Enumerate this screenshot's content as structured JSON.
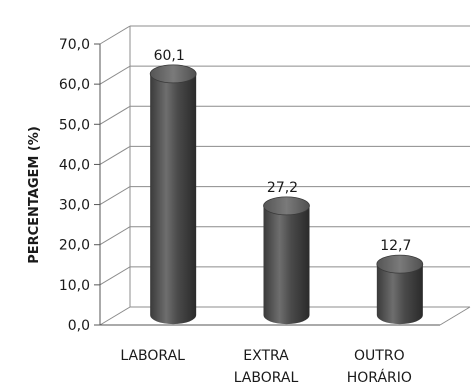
{
  "chart_data": {
    "type": "bar",
    "style": "3d-cylinder",
    "categories": [
      [
        "LABORAL"
      ],
      [
        "EXTRA",
        "LABORAL"
      ],
      [
        "OUTRO",
        "HORÁRIO"
      ]
    ],
    "values": [
      60.1,
      27.2,
      12.7
    ],
    "value_labels": [
      "60,1",
      "27,2",
      "12,7"
    ],
    "ylabel": "PERCENTAGEM (%)",
    "ylim": [
      0,
      70
    ],
    "yticks": [
      "0,0",
      "10,0",
      "20,0",
      "30,0",
      "40,0",
      "50,0",
      "60,0",
      "70,0"
    ],
    "grid": true,
    "bar_color": "#4a4a4a",
    "grid_color": "#8c8c8c"
  }
}
